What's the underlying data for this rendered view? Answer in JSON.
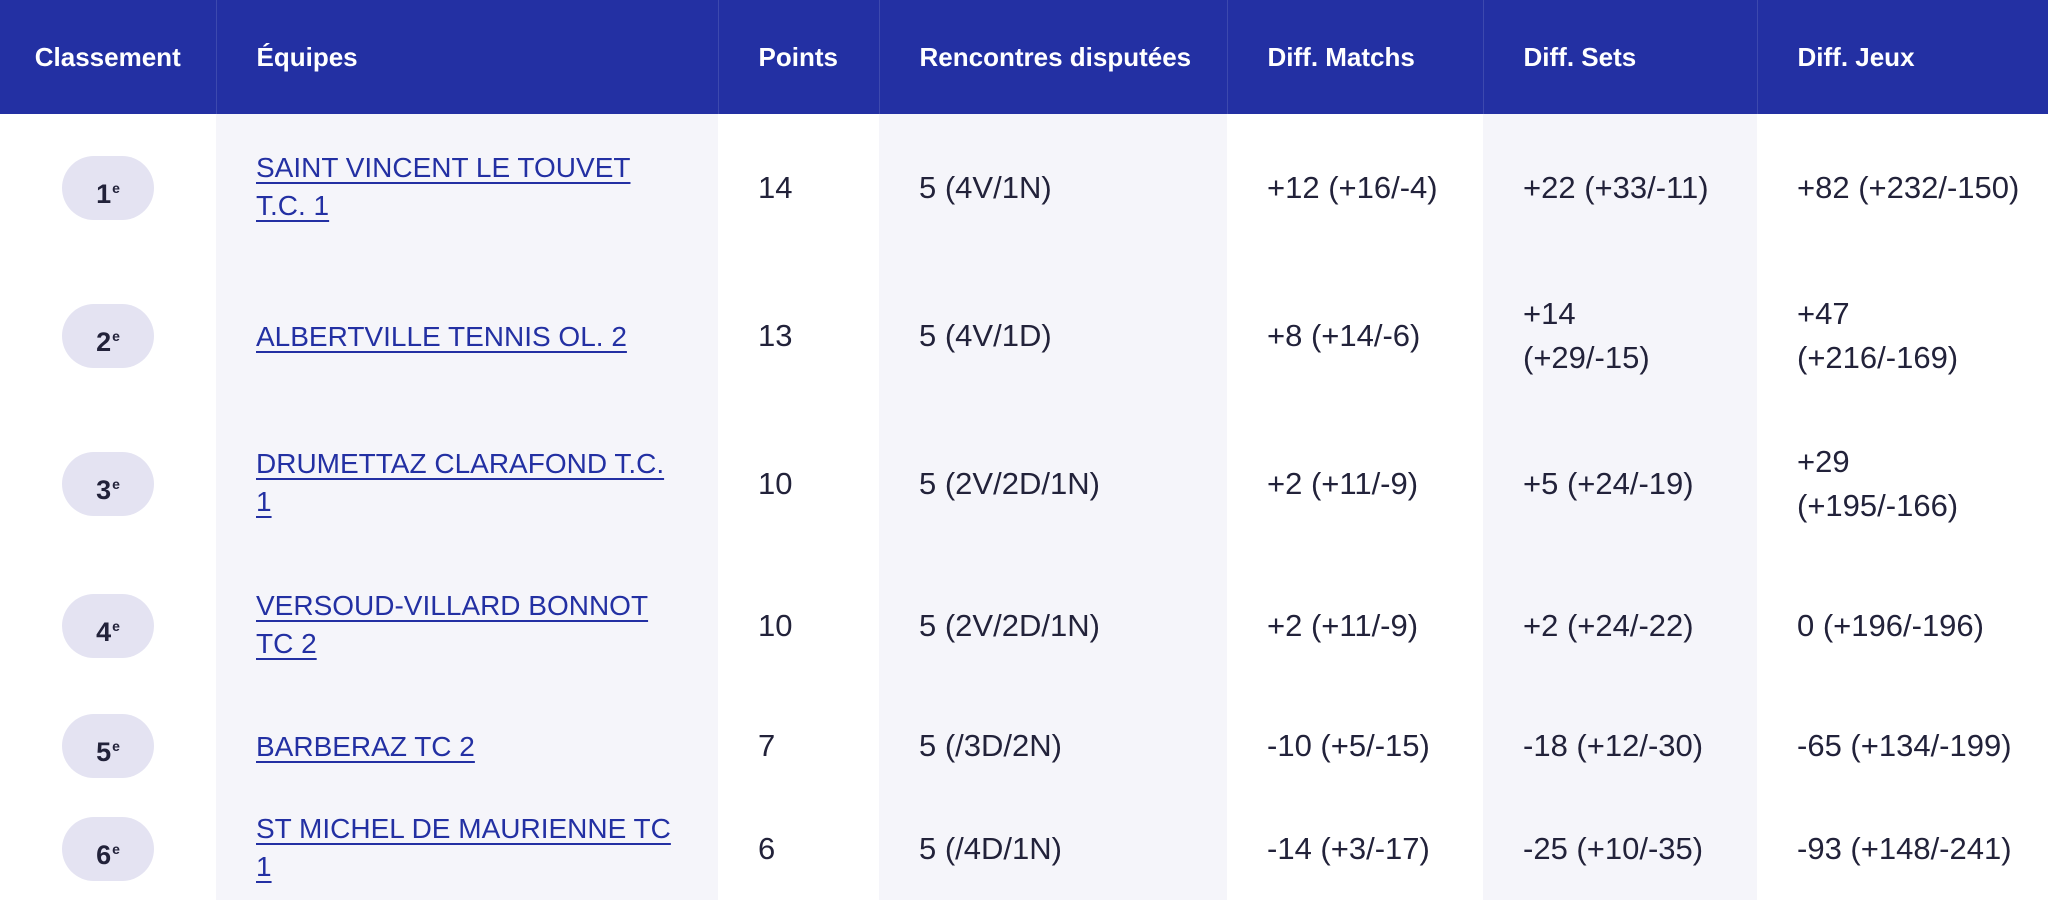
{
  "header": {
    "rank": "Classement",
    "team": "Équipes",
    "points": "Points",
    "played": "Rencontres disputées",
    "matches_diff": "Diff. Matchs",
    "sets_diff": "Diff. Sets",
    "games_diff": "Diff. Jeux"
  },
  "rows": [
    {
      "rank": "1",
      "rank_suffix": "e",
      "team": "SAINT VINCENT LE TOUVET T.C. 1",
      "points": "14",
      "played": "5 (4V/1N)",
      "matches": "+12 (+16/-4)",
      "sets": "+22 (+33/-11)",
      "games": "+82 (+232/-150)"
    },
    {
      "rank": "2",
      "rank_suffix": "e",
      "team": "ALBERTVILLE TENNIS OL. 2",
      "points": "13",
      "played": "5 (4V/1D)",
      "matches": "+8 (+14/-6)",
      "sets": "+14 (+29/-15)",
      "games": "+47 (+216/-169)"
    },
    {
      "rank": "3",
      "rank_suffix": "e",
      "team": "DRUMETTAZ CLARAFOND T.C. 1",
      "points": "10",
      "played": "5 (2V/2D/1N)",
      "matches": "+2 (+11/-9)",
      "sets": "+5 (+24/-19)",
      "games": "+29 (+195/-166)"
    },
    {
      "rank": "4",
      "rank_suffix": "e",
      "team": "VERSOUD-VILLARD BONNOT TC 2",
      "points": "10",
      "played": "5 (2V/2D/1N)",
      "matches": "+2 (+11/-9)",
      "sets": "+2 (+24/-22)",
      "games": "0 (+196/-196)"
    },
    {
      "rank": "5",
      "rank_suffix": "e",
      "team": "BARBERAZ TC 2",
      "points": "7",
      "played": "5 (/3D/2N)",
      "matches": "-10 (+5/-15)",
      "sets": "-18 (+12/-30)",
      "games": "-65 (+134/-199)"
    },
    {
      "rank": "6",
      "rank_suffix": "e",
      "team": "ST MICHEL DE MAURIENNE TC 1",
      "points": "6",
      "played": "5 (/4D/1N)",
      "matches": "-14 (+3/-17)",
      "sets": "-25 (+10/-35)",
      "games": "-93 (+148/-241)"
    }
  ],
  "colors": {
    "header_bg": "#2330a3",
    "header_text": "#ffffff",
    "link": "#2330a3",
    "shaded_column": "#f5f5fa",
    "rank_pill": "#e4e3f2",
    "text": "#22223a"
  }
}
